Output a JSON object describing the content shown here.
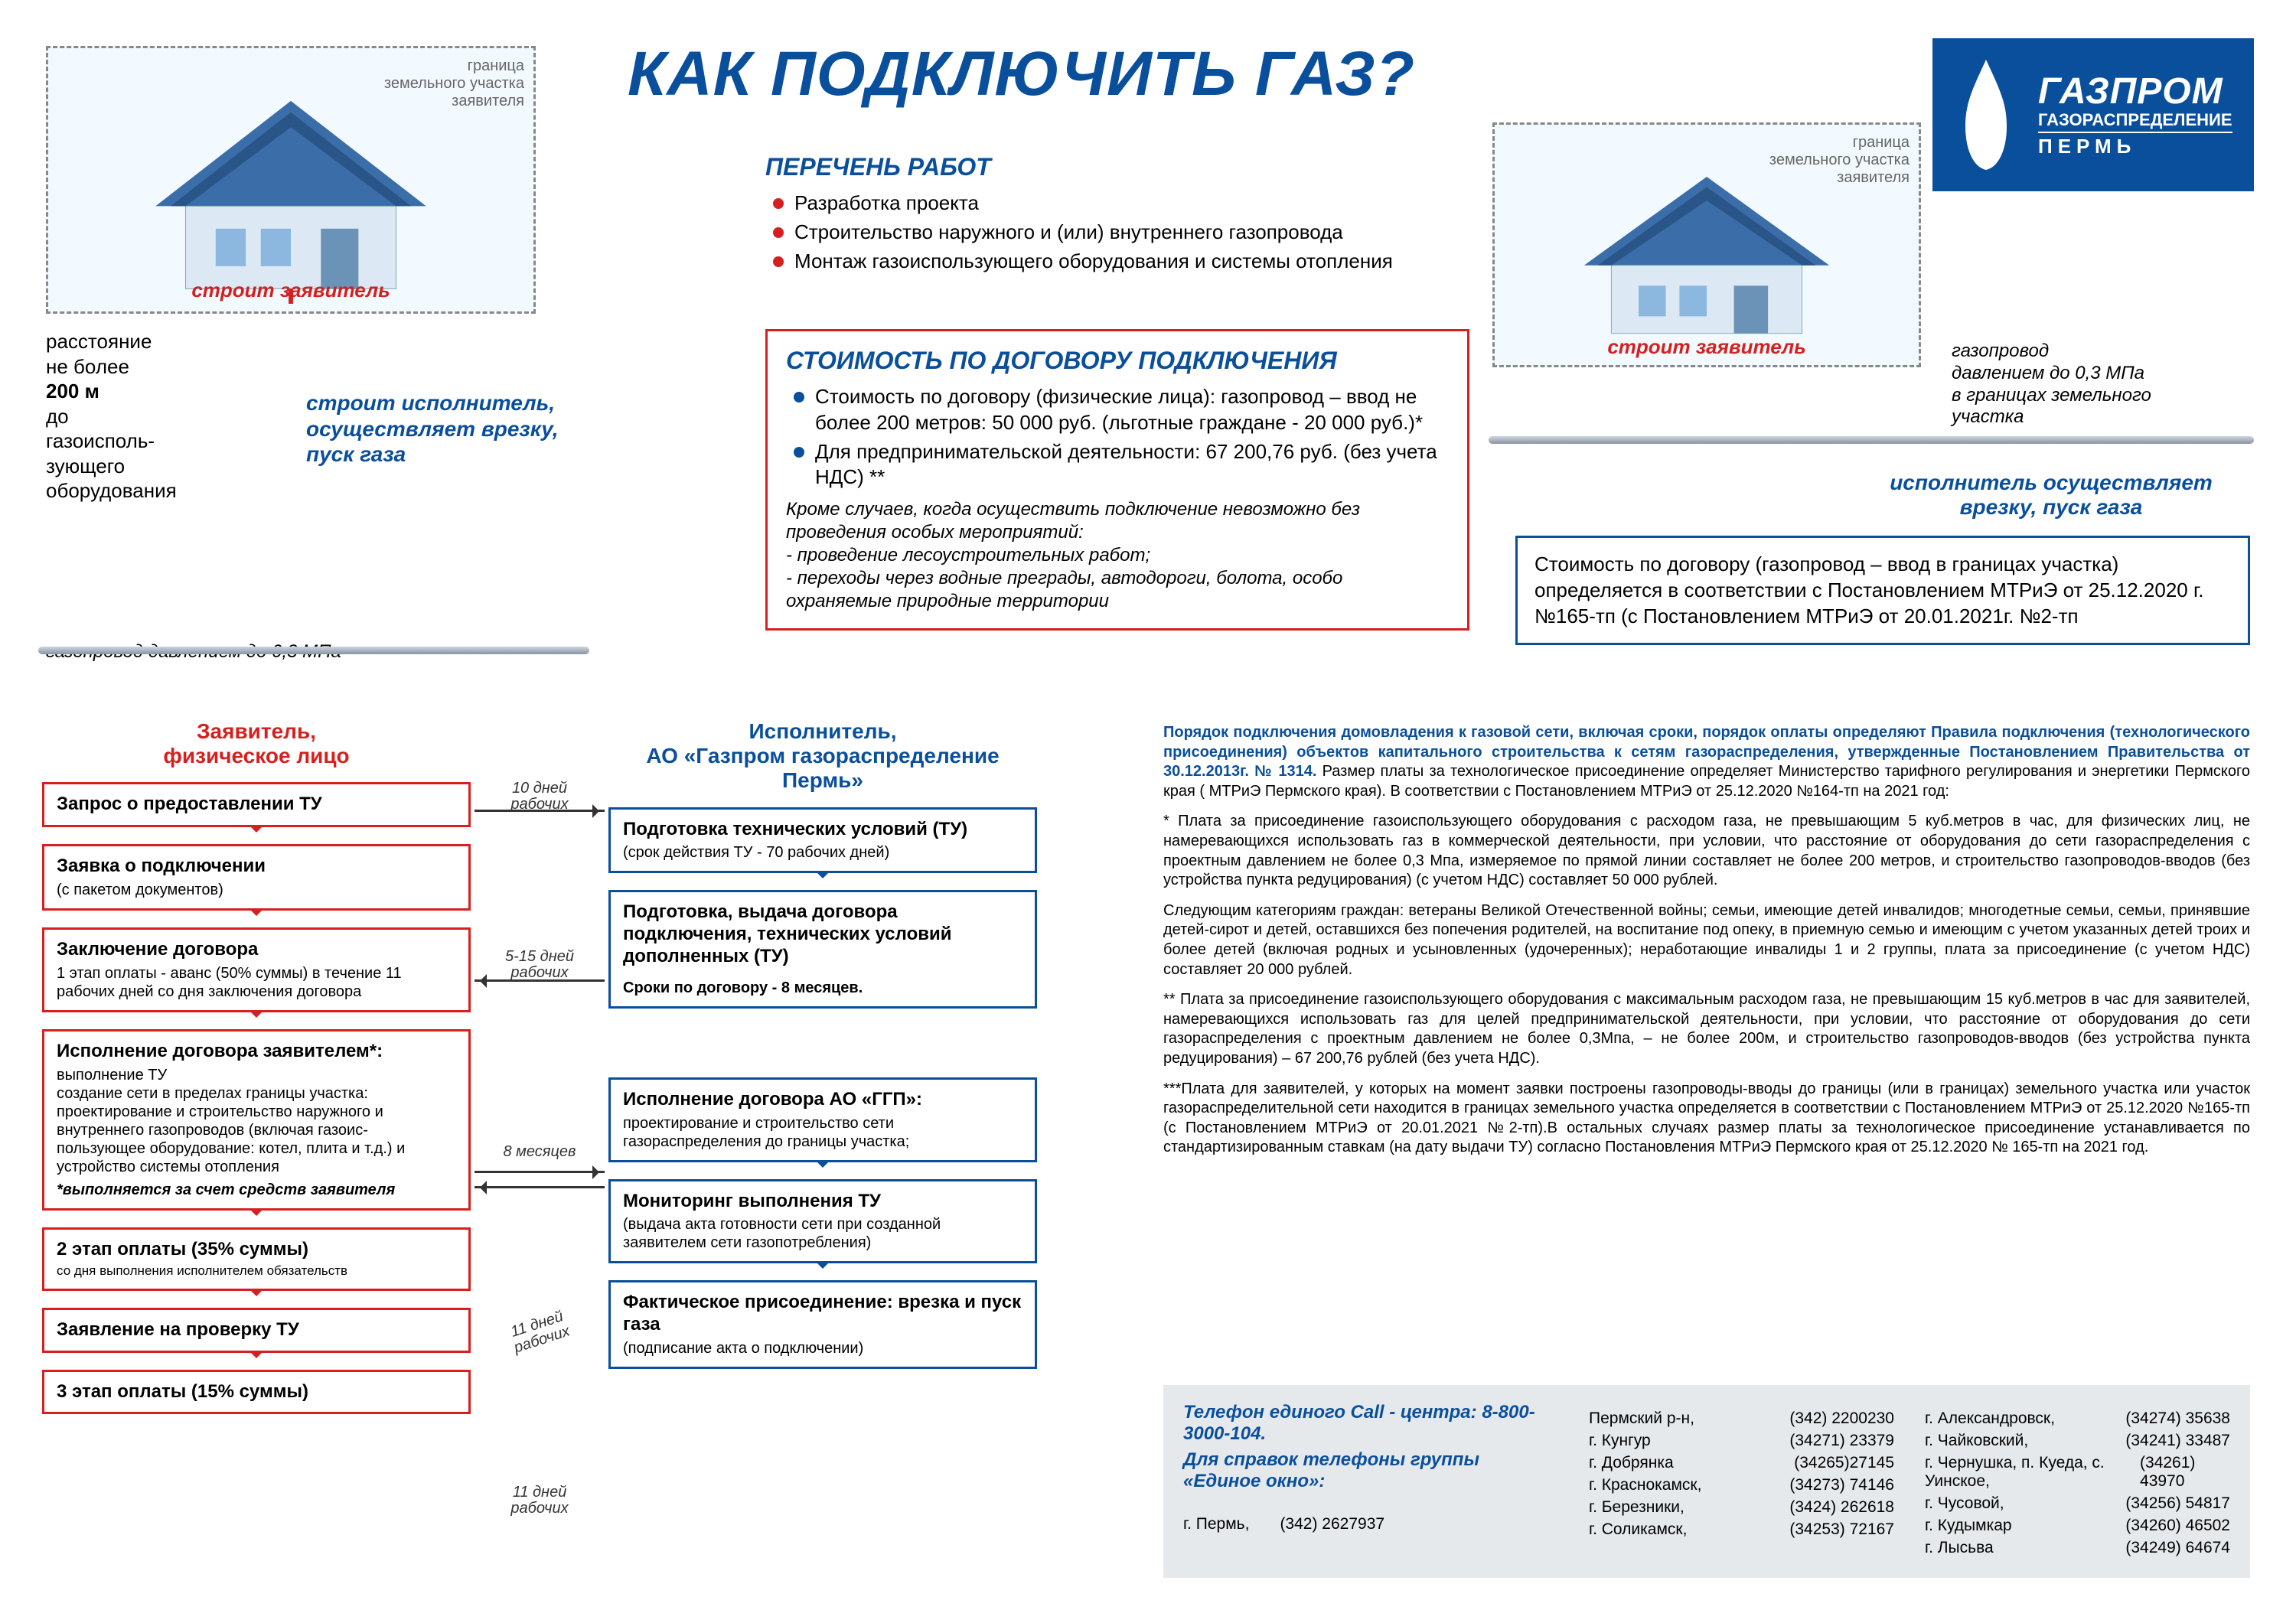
{
  "colors": {
    "brand_blue": "#0a4f9c",
    "accent_red": "#d62020",
    "grey_border": "#888888",
    "contact_bg": "#e6e9ec"
  },
  "title": "КАК ПОДКЛЮЧИТЬ ГАЗ?",
  "logo": {
    "t1": "ГАЗПРОМ",
    "t2": "ГАЗОРАСПРЕДЕЛЕНИЕ",
    "t3": "ПЕРМЬ"
  },
  "house_left": {
    "border_label": "граница\nземельного участка\nзаявителя",
    "build_applicant": "строит  заявитель",
    "distance": "расстояние\nне более\n200 м\nдо\nгазоисполь-\nзующего\nоборудования",
    "builder": "строит  исполнитель,\nосуществляет врезку,\nпуск газа",
    "pipe": "газопровод давлением до 0,3 МПа"
  },
  "house_right": {
    "border_label": "граница\nземельного участка\nзаявителя",
    "build_applicant": "строит  заявитель",
    "pipe_note": "газопровод\nдавлением до 0,3 МПа\nв границах земельного\nучастка",
    "builder": "исполнитель осуществляет\nврезку, пуск газа"
  },
  "works": {
    "title": "ПЕРЕЧЕНЬ РАБОТ",
    "items": [
      "Разработка проекта",
      "Строительство наружного и (или) внутреннего газопровода",
      "Монтаж газоиспользующего оборудования и системы отопления"
    ]
  },
  "cost": {
    "title": "СТОИМОСТЬ ПО ДОГОВОРУ ПОДКЛЮЧЕНИЯ",
    "items": [
      "Стоимость  по договору (физические лица): газопровод – ввод не более 200 метров: 50 000 руб. (льготные граждане -  20 000 руб.)*",
      "Для предпринимательской деятельности: 67 200,76 руб. (без учета НДС) **"
    ],
    "note": "Кроме случаев, когда осуществить подключение невозможно без проведения особых мероприятий:\n- проведение лесоустроительных работ;\n- переходы через водные преграды, автодороги, болота, особо охраняемые природные территории"
  },
  "right_cost_box": "Стоимость  по договору (газопровод – ввод в границах участка) определяется в соответствии с Постановлением МТРиЭ от 25.12.2020 г. №165-тп (с Постановлением МТРиЭ от 20.01.2021г. №2-тп",
  "flow": {
    "left_header": "Заявитель,\nфизическое лицо",
    "right_header": "Исполнитель,\nАО «Газпром газораспределение Пермь»",
    "l1": {
      "t": "Запрос о предоставлении ТУ"
    },
    "r1": {
      "t": "Подготовка технических условий  (ТУ)",
      "sub": "(срок действия ТУ - 70 рабочих дней)"
    },
    "a1": "10 дней\nрабочих",
    "l2": {
      "t": "Заявка о подключении",
      "sub": "(с пакетом документов)"
    },
    "r2": {
      "t": "Подготовка, выдача договора подключения, технических условий дополненных (ТУ)",
      "sub": "Сроки по договору - 8 месяцев."
    },
    "l3": {
      "t": "Заключение договора",
      "sub": "1 этап оплаты - аванс (50% суммы) в течение 11 рабочих дней со дня заключения договора"
    },
    "a3": "5-15 дней\nрабочих",
    "l4": {
      "t": "Исполнение договора заявителем*:",
      "sub": "выполнение ТУ\nсоздание сети в пределах границы участка: проектирование и строительство наружного и внутреннего газопроводов (включая газоис-пользующее оборудование: котел, плита и т.д.) и устройство системы отопления",
      "em": "*выполняется за счет средств заявителя"
    },
    "r4": {
      "t": "Исполнение договора АО «ГГП»:",
      "sub": "проектирование и строительство сети газораспределения до границы участка;"
    },
    "a4": "8 месяцев",
    "l5": {
      "t": "2 этап оплаты (35% суммы)",
      "sub": "со дня выполнения исполнителем обязательств"
    },
    "r5": {
      "t": "Мониторинг выполнения ТУ",
      "sub": "(выдача акта готовности сети при созданной заявителем сети газопотребления)"
    },
    "a5": "11 дней\nрабочих",
    "l6": {
      "t": "Заявление на проверку ТУ"
    },
    "r6": {
      "t": "Фактическое присоединение: врезка и пуск газа",
      "sub": "(подписание акта о подключении)"
    },
    "a6": "11 дней\nрабочих",
    "l7": {
      "t": "3 этап оплаты (15% суммы)"
    }
  },
  "legal": {
    "lead": "Порядок подключения домовладения к газовой сети, включая сроки, порядок оплаты определяют Правила подключения (технологического присоединения) объектов капитального строительства к сетям газораспределения, утвержденные Постановлением Правительства от 30.12.2013г. № 1314.",
    "lead_tail": " Размер платы за технологическое присоединение определяет Министерство тарифного регулирования и энергетики Пермского края ( МТРиЭ Пермского края). В соответствии с Постановлением МТРиЭ от 25.12.2020   №164-тп на 2021 год:",
    "p1": "* Плата за присоединение газоиспользующего оборудования с расходом газа, не превышающим 5 куб.метров в час, для физических лиц, не намеревающихся использовать газ в коммерческой деятельности, при условии, что расстояние от оборудования до сети газораспределения с проектным давлением не более 0,3 Мпа, измеряемое по прямой линии составляет не более 200 метров, и строительство газопроводов-вводов (без устройства пункта редуцирования) (с учетом НДС) составляет 50 000 рублей.",
    "p2": "Следующим категориям граждан:  ветераны Великой Отечественной войны; семьи, имеющие детей инвалидов; многодетные семьи, семьи, принявшие детей-сирот и детей, оставшихся без попечения родителей, на воспитание под опеку, в приемную семью и имеющим с учетом указанных детей троих и более детей (включая родных и усыновленных (удочеренных); неработающие инвалиды 1 и 2 группы, плата за присоединение (с учетом НДС) составляет  20 000 рублей.",
    "p3": "** Плата за присоединение газоиспользующего оборудования с максимальным расходом газа, не превышающим 15 куб.метров в час для заявителей, намеревающихся использовать газ для целей предпринимательской деятельности, при условии, что расстояние от оборудования до сети газораспределения с проектным давлением не более 0,3Мпа, – не более 200м, и строительство газопроводов-вводов (без устройства пункта редуцирования) – 67 200,76 рублей (без учета НДС).",
    "p4": "***Плата для заявителей, у которых на момент заявки построены газопроводы-вводы до границы (или в границах) земельного участка или участок газораспределительной сети находится в границах земельного участка определяется в соответствии с Постановлением МТРиЭ от 25.12.2020 №165-тп (с Постановлением МТРиЭ от 20.01.2021 №2-тп).В остальных случаях размер платы за технологическое присоединение устанавливается по стандартизированным ставкам (на дату выдачи ТУ) согласно Постановления МТРиЭ Пермского края от 25.12.2020 № 165-тп на 2021 год."
  },
  "contacts": {
    "call": "Телефон единого Call - центра: 8-800-3000-104.",
    "help": "Для справок телефоны группы «Единое окно»:",
    "main_city": "г. Пермь,",
    "main_phone": "(342) 2627937",
    "cols": [
      [
        {
          "c": "Пермский р-н,",
          "p": "(342) 2200230"
        },
        {
          "c": "г. Кунгур",
          "p": "(34271) 23379"
        },
        {
          "c": "г. Добрянка",
          "p": "(34265)27145"
        },
        {
          "c": "г. Краснокамск,",
          "p": "(34273) 74146"
        },
        {
          "c": "г. Березники,",
          "p": "(3424) 262618"
        },
        {
          "c": "г. Соликамск,",
          "p": "(34253) 72167"
        }
      ],
      [
        {
          "c": "г. Александровск,",
          "p": "(34274) 35638"
        },
        {
          "c": "г. Чайковский,",
          "p": "(34241) 33487"
        },
        {
          "c": "г. Чернушка, п. Куеда, с. Уинское,",
          "p": "(34261) 43970"
        },
        {
          "c": "г. Чусовой,",
          "p": "(34256) 54817"
        },
        {
          "c": "г. Кудымкар",
          "p": "(34260) 46502"
        },
        {
          "c": "г. Лысьва",
          "p": "(34249) 64674"
        }
      ]
    ]
  }
}
